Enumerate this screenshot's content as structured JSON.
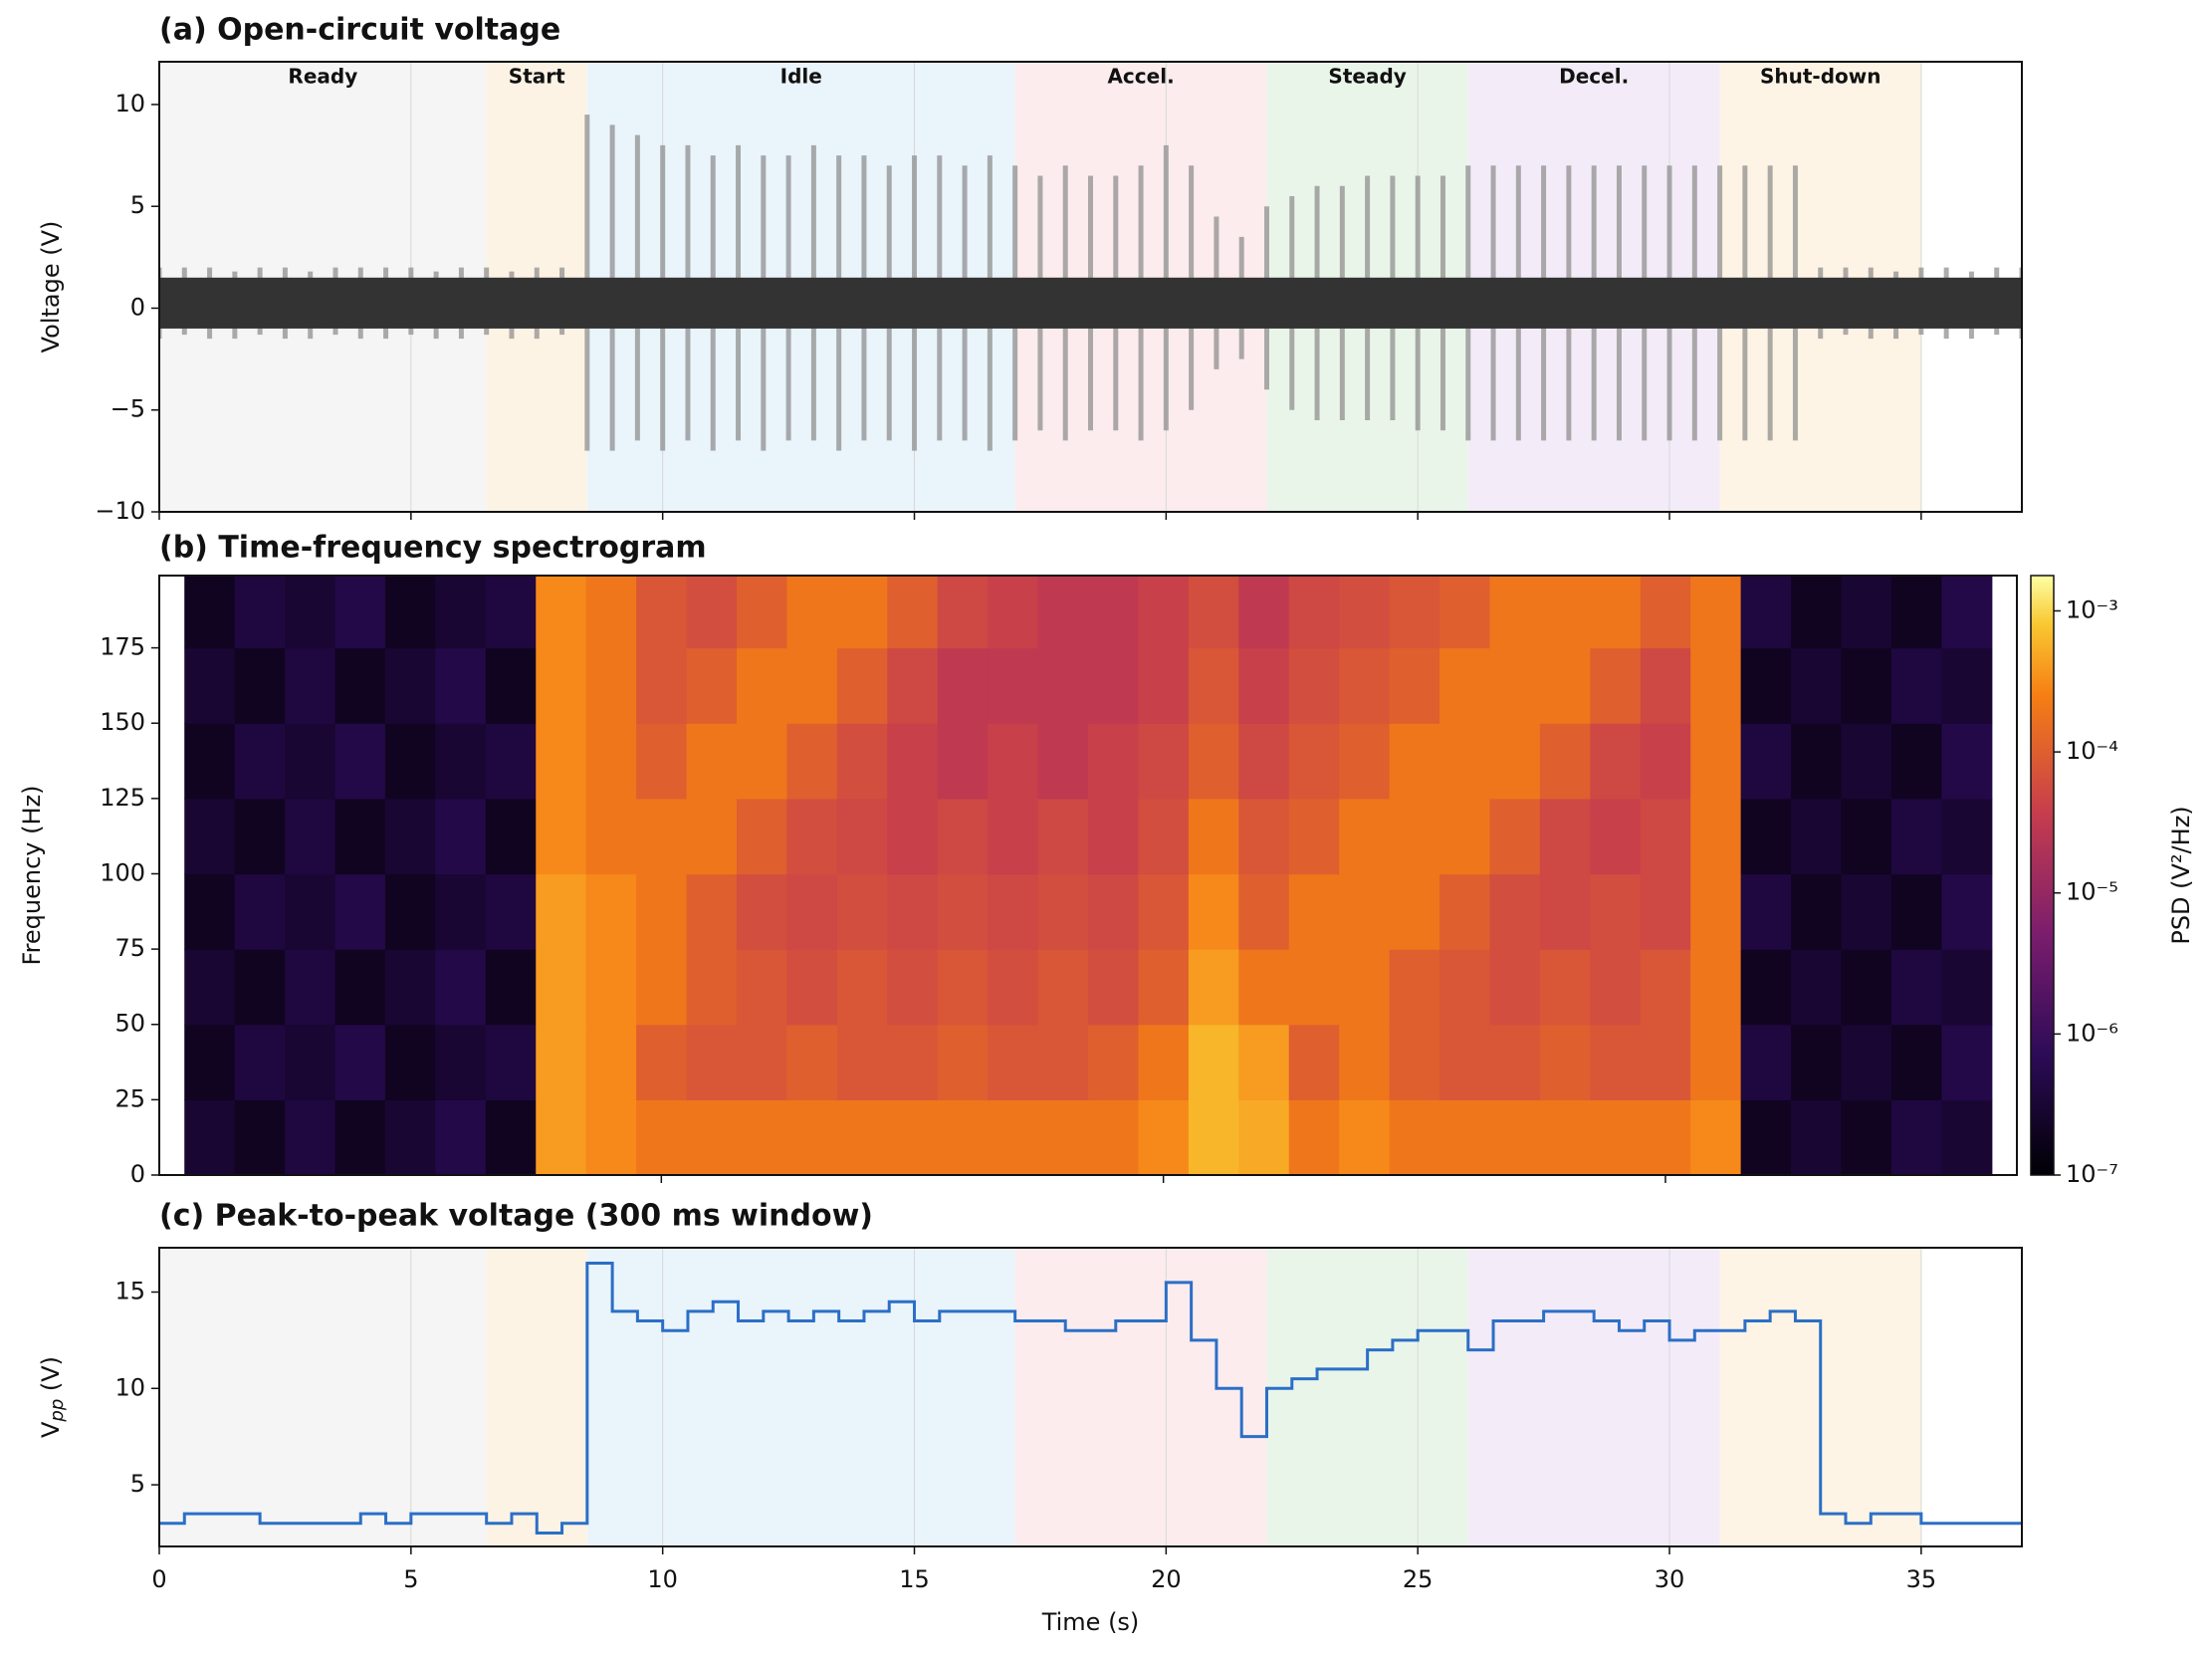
{
  "chart_data": [
    {
      "type": "signal",
      "title": "(a) Open-circuit voltage",
      "ylabel": "Voltage (V)",
      "xlim": [
        0,
        37
      ],
      "xticks": [
        0,
        5,
        10,
        15,
        20,
        25,
        30,
        35
      ],
      "ylim": [
        -10,
        12.1
      ],
      "yticks": [
        {
          "value": -10,
          "label": "−10"
        },
        {
          "value": -5,
          "label": "−5"
        },
        0,
        5,
        10
      ],
      "grid": true,
      "color": "#333333",
      "spike_color": "#8a8a8a",
      "noise_band": [
        -1,
        1.5
      ],
      "phases": [
        {
          "label": "Ready",
          "start": 0,
          "end": 6.5,
          "color": "#f2f2f2"
        },
        {
          "label": "Start",
          "start": 6.5,
          "end": 8.5,
          "color": "#fcefdc"
        },
        {
          "label": "Idle",
          "start": 8.5,
          "end": 17,
          "color": "#e3f0fa"
        },
        {
          "label": "Accel.",
          "start": 17,
          "end": 22,
          "color": "#fbe6e8"
        },
        {
          "label": "Steady",
          "start": 22,
          "end": 26,
          "color": "#e3f2e3"
        },
        {
          "label": "Decel.",
          "start": 26,
          "end": 31,
          "color": "#efe5f5"
        },
        {
          "label": "Shut-down",
          "start": 31,
          "end": 35,
          "color": "#fdf0dc"
        }
      ],
      "x": [
        0,
        0.5,
        1,
        1.5,
        2,
        2.5,
        3,
        3.5,
        4,
        4.5,
        5,
        5.5,
        6,
        6.5,
        7,
        7.5,
        8,
        8.5,
        9,
        9.5,
        10,
        10.5,
        11,
        11.5,
        12,
        12.5,
        13,
        13.5,
        14,
        14.5,
        15,
        15.5,
        16,
        16.5,
        17,
        17.5,
        18,
        18.5,
        19,
        19.5,
        20,
        20.5,
        21,
        21.5,
        22,
        22.5,
        23,
        23.5,
        24,
        24.5,
        25,
        25.5,
        26,
        26.5,
        27,
        27.5,
        28,
        28.5,
        29,
        29.5,
        30,
        30.5,
        31,
        31.5,
        32,
        32.5,
        33,
        33.5,
        34,
        34.5,
        35,
        35.5,
        36,
        36.5,
        37
      ],
      "max": [
        2,
        2,
        2,
        1.8,
        2,
        2,
        1.8,
        2,
        2,
        2,
        2,
        1.8,
        2,
        2,
        1.8,
        2,
        2,
        9.5,
        9,
        8.5,
        8,
        8,
        7.5,
        8,
        7.5,
        7.5,
        8,
        7.5,
        7.5,
        7,
        7.5,
        7.5,
        7,
        7.5,
        7,
        6.5,
        7,
        6.5,
        6.5,
        7,
        8,
        7,
        4.5,
        3.5,
        5,
        5.5,
        6,
        6,
        6.5,
        6.5,
        6.5,
        6.5,
        7,
        7,
        7,
        7,
        7,
        7,
        7,
        7,
        7,
        7,
        7,
        7,
        7,
        7,
        2,
        2,
        2,
        1.8,
        2,
        2,
        1.8,
        2,
        2
      ],
      "min": [
        -1.5,
        -1.3,
        -1.5,
        -1.5,
        -1.3,
        -1.5,
        -1.5,
        -1.3,
        -1.5,
        -1.5,
        -1.3,
        -1.5,
        -1.5,
        -1.3,
        -1.5,
        -1.5,
        -1.3,
        -7,
        -7,
        -6.5,
        -7,
        -6.5,
        -7,
        -6.5,
        -7,
        -6.5,
        -6.5,
        -7,
        -6.5,
        -6.5,
        -7,
        -6.5,
        -6.5,
        -7,
        -6.5,
        -6,
        -6.5,
        -6,
        -6,
        -6.5,
        -6,
        -5,
        -3,
        -2.5,
        -4,
        -5,
        -5.5,
        -5.5,
        -5.5,
        -5.5,
        -6,
        -6,
        -6.5,
        -6.5,
        -6.5,
        -6.5,
        -6.5,
        -6.5,
        -6.5,
        -6.5,
        -6.5,
        -6.5,
        -6.5,
        -6.5,
        -6.5,
        -6.5,
        -1.5,
        -1.3,
        -1.5,
        -1.5,
        -1.3,
        -1.5,
        -1.5,
        -1.3,
        -1.5
      ]
    },
    {
      "type": "heatmap",
      "title": "(b) Time-frequency spectrogram",
      "ylabel": "Frequency (Hz)",
      "xlim": [
        0,
        37
      ],
      "xticks": [
        10,
        20,
        30
      ],
      "ylim": [
        0,
        199
      ],
      "yticks": [
        0,
        25,
        50,
        75,
        100,
        125,
        150,
        175
      ],
      "colormap": "inferno",
      "clabel": "PSD (V²/Hz)",
      "clim": [
        1e-07,
        0.00178
      ],
      "log_color": true,
      "cticks": [
        {
          "value": 1e-07,
          "label": "10⁻⁷"
        },
        {
          "value": 1e-06,
          "label": "10⁻⁶"
        },
        {
          "value": 1e-05,
          "label": "10⁻⁵"
        },
        {
          "value": 0.0001,
          "label": "10⁻⁴"
        },
        {
          "value": 0.001,
          "label": "10⁻³"
        }
      ],
      "x_edges": [
        0.5,
        1.5,
        2.5,
        3.5,
        4.5,
        5.5,
        6.5,
        7.5,
        8.5,
        9.5,
        10.5,
        11.5,
        12.5,
        13.5,
        14.5,
        15.5,
        16.5,
        17.5,
        18.5,
        19.5,
        20.5,
        21.5,
        22.5,
        23.5,
        24.5,
        25.5,
        26.5,
        27.5,
        28.5,
        29.5,
        30.5,
        31.5,
        32.5,
        33.5,
        34.5,
        35.5,
        36.5
      ],
      "y_edges": [
        0,
        25,
        50,
        75,
        100,
        125,
        150,
        175,
        200
      ],
      "z": [
        [
          3e-07,
          2e-07,
          4e-07,
          2e-07,
          3e-07,
          5e-07,
          2e-07,
          0.0004,
          0.0003,
          0.0002,
          0.0002,
          0.0002,
          0.0002,
          0.0002,
          0.0002,
          0.0002,
          0.0002,
          0.0002,
          0.0002,
          0.0003,
          0.0006,
          0.0005,
          0.0002,
          0.0003,
          0.0002,
          0.0002,
          0.0002,
          0.0002,
          0.0002,
          0.0002,
          0.0003,
          2e-07,
          3e-07,
          2e-07,
          4e-07,
          3e-07
        ],
        [
          2e-07,
          4e-07,
          3e-07,
          5e-07,
          2e-07,
          3e-07,
          4e-07,
          0.0004,
          0.0003,
          0.0001,
          8e-05,
          8e-05,
          0.0001,
          8e-05,
          8e-05,
          0.0001,
          8e-05,
          8e-05,
          0.0001,
          0.0002,
          0.0006,
          0.0004,
          0.0001,
          0.0002,
          0.0001,
          8e-05,
          8e-05,
          0.0001,
          8e-05,
          8e-05,
          0.0002,
          4e-07,
          2e-07,
          3e-07,
          2e-07,
          5e-07
        ],
        [
          3e-07,
          2e-07,
          4e-07,
          2e-07,
          3e-07,
          5e-07,
          2e-07,
          0.0004,
          0.0003,
          0.0002,
          0.0001,
          8e-05,
          6e-05,
          8e-05,
          6e-05,
          8e-05,
          6e-05,
          8e-05,
          6e-05,
          0.0001,
          0.0004,
          0.0002,
          0.0002,
          0.0002,
          0.0001,
          8e-05,
          6e-05,
          8e-05,
          6e-05,
          8e-05,
          0.0002,
          2e-07,
          3e-07,
          2e-07,
          4e-07,
          3e-07
        ],
        [
          2e-07,
          4e-07,
          3e-07,
          5e-07,
          2e-07,
          3e-07,
          4e-07,
          0.0004,
          0.0003,
          0.0002,
          0.0001,
          6e-05,
          5e-05,
          6e-05,
          5e-05,
          6e-05,
          5e-05,
          6e-05,
          5e-05,
          8e-05,
          0.0003,
          0.0001,
          0.0002,
          0.0002,
          0.0002,
          0.0001,
          6e-05,
          5e-05,
          6e-05,
          5e-05,
          0.0002,
          4e-07,
          2e-07,
          3e-07,
          2e-07,
          5e-07
        ],
        [
          3e-07,
          2e-07,
          4e-07,
          2e-07,
          3e-07,
          5e-07,
          2e-07,
          0.0003,
          0.0002,
          0.0002,
          0.0002,
          0.0001,
          6e-05,
          5e-05,
          4e-05,
          5e-05,
          4e-05,
          5e-05,
          4e-05,
          6e-05,
          0.0002,
          8e-05,
          0.0001,
          0.0002,
          0.0002,
          0.0002,
          0.0001,
          5e-05,
          4e-05,
          5e-05,
          0.0002,
          2e-07,
          3e-07,
          2e-07,
          4e-07,
          3e-07
        ],
        [
          2e-07,
          4e-07,
          3e-07,
          5e-07,
          2e-07,
          3e-07,
          4e-07,
          0.0003,
          0.0002,
          0.0001,
          0.0002,
          0.0002,
          0.0001,
          6e-05,
          4e-05,
          3e-05,
          4e-05,
          3e-05,
          4e-05,
          5e-05,
          0.0001,
          5e-05,
          8e-05,
          0.0001,
          0.0002,
          0.0002,
          0.0002,
          0.0001,
          5e-05,
          4e-05,
          0.0002,
          4e-07,
          2e-07,
          3e-07,
          2e-07,
          5e-07
        ],
        [
          3e-07,
          2e-07,
          4e-07,
          2e-07,
          3e-07,
          5e-07,
          2e-07,
          0.0003,
          0.0002,
          8e-05,
          0.0001,
          0.0002,
          0.0002,
          0.0001,
          5e-05,
          3e-05,
          3e-05,
          3e-05,
          3e-05,
          4e-05,
          8e-05,
          4e-05,
          6e-05,
          8e-05,
          0.0001,
          0.0002,
          0.0002,
          0.0002,
          0.0001,
          5e-05,
          0.0002,
          2e-07,
          3e-07,
          2e-07,
          4e-07,
          3e-07
        ],
        [
          2e-07,
          4e-07,
          3e-07,
          5e-07,
          2e-07,
          3e-07,
          4e-07,
          0.0003,
          0.0002,
          8e-05,
          6e-05,
          0.0001,
          0.0002,
          0.0002,
          0.0001,
          5e-05,
          4e-05,
          3e-05,
          3e-05,
          4e-05,
          6e-05,
          3e-05,
          5e-05,
          6e-05,
          8e-05,
          0.0001,
          0.0002,
          0.0002,
          0.0002,
          0.0001,
          0.0002,
          4e-07,
          2e-07,
          3e-07,
          2e-07,
          5e-07
        ]
      ]
    },
    {
      "type": "line",
      "title": "(c) Peak-to-peak voltage (300 ms window)",
      "ylabel": [
        "V",
        "pp",
        " (V)"
      ],
      "xlabel": "Time (s)",
      "xlim": [
        0,
        37
      ],
      "xticks": [
        0,
        5,
        10,
        15,
        20,
        25,
        30,
        35
      ],
      "xtick_labels": true,
      "ylim": [
        1.8,
        17.3
      ],
      "yticks": [
        5,
        10,
        15
      ],
      "grid": true,
      "color": "#2b6fc7",
      "step": true,
      "x": [
        0,
        0.5,
        1,
        1.5,
        2,
        2.5,
        3,
        3.5,
        4,
        4.5,
        5,
        5.5,
        6,
        6.5,
        7,
        7.5,
        8,
        8.5,
        9,
        9.5,
        10,
        10.5,
        11,
        11.5,
        12,
        12.5,
        13,
        13.5,
        14,
        14.5,
        15,
        15.5,
        16,
        16.5,
        17,
        17.5,
        18,
        18.5,
        19,
        19.5,
        20,
        20.5,
        21,
        21.5,
        22,
        22.5,
        23,
        23.5,
        24,
        24.5,
        25,
        25.5,
        26,
        26.5,
        27,
        27.5,
        28,
        28.5,
        29,
        29.5,
        30,
        30.5,
        31,
        31.5,
        32,
        32.5,
        33,
        33.5,
        34,
        34.5,
        35,
        35.5,
        36,
        36.5,
        37
      ],
      "values": [
        3,
        3.5,
        3.5,
        3.5,
        3,
        3,
        3,
        3,
        3.5,
        3,
        3.5,
        3.5,
        3.5,
        3,
        3.5,
        2.5,
        3,
        16.5,
        14,
        13.5,
        13,
        14,
        14.5,
        13.5,
        14,
        13.5,
        14,
        13.5,
        14,
        14.5,
        13.5,
        14,
        14,
        14,
        13.5,
        13.5,
        13,
        13,
        13.5,
        13.5,
        15.5,
        12.5,
        10,
        7.5,
        10,
        10.5,
        11,
        11,
        12,
        12.5,
        13,
        13,
        12,
        13.5,
        13.5,
        14,
        14,
        13.5,
        13,
        13.5,
        12.5,
        13,
        13,
        13.5,
        14,
        13.5,
        3.5,
        3,
        3.5,
        3.5,
        3,
        3,
        3,
        3,
        3
      ]
    }
  ]
}
